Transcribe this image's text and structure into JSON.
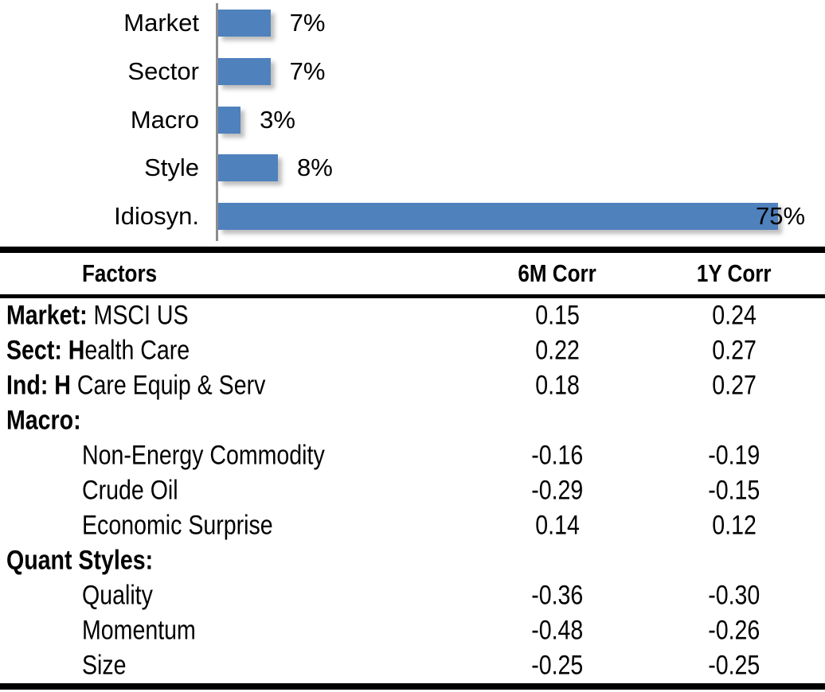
{
  "chart_data": {
    "type": "bar",
    "orientation": "horizontal",
    "categories": [
      "Market",
      "Sector",
      "Macro",
      "Style",
      "Idiosyn."
    ],
    "values": [
      7,
      7,
      3,
      8,
      75
    ],
    "value_labels": [
      "7%",
      "7%",
      "3%",
      "8%",
      "75%"
    ],
    "xlim": [
      0,
      80
    ],
    "grid": false,
    "legend": false,
    "bar_color": "#4F81BD",
    "axis_color": "#8C8C8C"
  },
  "table": {
    "headers": {
      "factors": "Factors",
      "col6m": "6M Corr",
      "col1y": "1Y Corr"
    },
    "rows": [
      {
        "bold": "Market:",
        "rest": " MSCI US",
        "indent": false,
        "c6m": "0.15",
        "c1y": "0.24"
      },
      {
        "bold": "Sect: H",
        "rest": "ealth Care",
        "indent": false,
        "c6m": "0.22",
        "c1y": "0.27"
      },
      {
        "bold": "Ind: H",
        "rest": " Care Equip & Serv",
        "indent": false,
        "c6m": "0.18",
        "c1y": "0.27"
      },
      {
        "bold": "Macro:",
        "rest": "",
        "indent": false,
        "c6m": "",
        "c1y": ""
      },
      {
        "bold": "",
        "rest": "Non-Energy Commodity",
        "indent": true,
        "c6m": "-0.16",
        "c1y": "-0.19"
      },
      {
        "bold": "",
        "rest": "Crude Oil",
        "indent": true,
        "c6m": "-0.29",
        "c1y": "-0.15"
      },
      {
        "bold": "",
        "rest": "Economic Surprise",
        "indent": true,
        "c6m": "0.14",
        "c1y": "0.12"
      },
      {
        "bold": "Quant Styles:",
        "rest": "",
        "indent": false,
        "c6m": "",
        "c1y": ""
      },
      {
        "bold": "",
        "rest": "Quality",
        "indent": true,
        "c6m": "-0.36",
        "c1y": "-0.30"
      },
      {
        "bold": "",
        "rest": "Momentum",
        "indent": true,
        "c6m": "-0.48",
        "c1y": "-0.26"
      },
      {
        "bold": "",
        "rest": "Size",
        "indent": true,
        "c6m": "-0.25",
        "c1y": "-0.25"
      }
    ]
  },
  "colors": {
    "bar": "#4F81BD",
    "axis": "#8C8C8C",
    "rule": "#000000",
    "text": "#000000",
    "background": "#FFFFFF"
  }
}
